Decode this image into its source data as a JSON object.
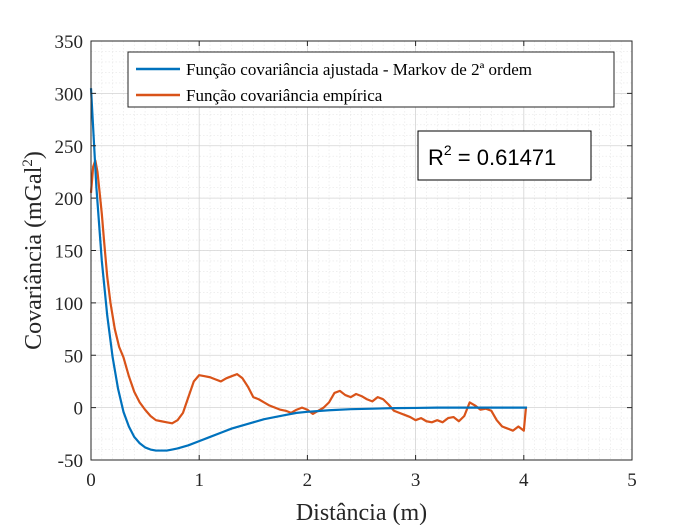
{
  "chart_data": {
    "type": "line",
    "title": "",
    "xlabel": "Distância (m)",
    "ylabel": {
      "prefix": "Covariância (mGal",
      "sup": "2",
      "suffix": ")"
    },
    "xlim": [
      0,
      5
    ],
    "ylim": [
      -50,
      350
    ],
    "xticks": [
      0,
      1,
      2,
      3,
      4,
      5
    ],
    "yticks": [
      -50,
      0,
      50,
      100,
      150,
      200,
      250,
      300,
      350
    ],
    "grid": true,
    "minor_grid": true,
    "legend_position": "top-right",
    "series": [
      {
        "name": "Função covariância ajustada - Markov de 2ª ordem",
        "color": "#0072BD",
        "x": [
          0,
          0.05,
          0.1,
          0.15,
          0.2,
          0.25,
          0.3,
          0.35,
          0.4,
          0.45,
          0.5,
          0.55,
          0.6,
          0.65,
          0.7,
          0.75,
          0.8,
          0.9,
          1.0,
          1.1,
          1.2,
          1.3,
          1.4,
          1.5,
          1.6,
          1.7,
          1.8,
          1.9,
          2.0,
          2.2,
          2.4,
          2.6,
          2.8,
          3.0,
          3.2,
          3.4,
          3.6,
          3.8,
          4.0,
          4.03
        ],
        "y": [
          305,
          210,
          140,
          88,
          48,
          18,
          -4,
          -18,
          -28,
          -34,
          -38,
          -40,
          -41,
          -41,
          -41,
          -40,
          -39,
          -36,
          -32,
          -28,
          -24,
          -20,
          -17,
          -14,
          -11,
          -9,
          -7,
          -5,
          -4,
          -2.5,
          -1.5,
          -1,
          -0.5,
          -0.3,
          0,
          0,
          0,
          0,
          0,
          0
        ]
      },
      {
        "name": "Função covariância empírica",
        "color": "#D95319",
        "x": [
          0,
          0.02,
          0.04,
          0.06,
          0.08,
          0.1,
          0.12,
          0.15,
          0.18,
          0.22,
          0.26,
          0.3,
          0.35,
          0.4,
          0.45,
          0.5,
          0.55,
          0.6,
          0.65,
          0.7,
          0.75,
          0.8,
          0.85,
          0.9,
          0.95,
          1.0,
          1.05,
          1.1,
          1.15,
          1.2,
          1.25,
          1.3,
          1.35,
          1.4,
          1.45,
          1.5,
          1.55,
          1.6,
          1.65,
          1.7,
          1.75,
          1.8,
          1.85,
          1.9,
          1.95,
          2.0,
          2.05,
          2.1,
          2.15,
          2.2,
          2.25,
          2.3,
          2.35,
          2.4,
          2.45,
          2.5,
          2.55,
          2.6,
          2.65,
          2.7,
          2.75,
          2.8,
          2.85,
          2.9,
          2.95,
          3.0,
          3.05,
          3.1,
          3.15,
          3.2,
          3.25,
          3.3,
          3.35,
          3.4,
          3.45,
          3.5,
          3.55,
          3.6,
          3.65,
          3.7,
          3.75,
          3.8,
          3.85,
          3.9,
          3.95,
          4.0,
          4.02
        ],
        "y": [
          205,
          230,
          236,
          225,
          205,
          185,
          160,
          125,
          100,
          75,
          58,
          48,
          30,
          15,
          5,
          -2,
          -8,
          -12,
          -13,
          -14,
          -15,
          -12,
          -5,
          10,
          25,
          31,
          30,
          29,
          27,
          25,
          28,
          30,
          32,
          28,
          20,
          10,
          8,
          5,
          2,
          0,
          -2,
          -3,
          -5,
          -2,
          0,
          -2,
          -6,
          -3,
          0,
          5,
          14,
          16,
          12,
          10,
          13,
          11,
          8,
          6,
          10,
          8,
          3,
          -3,
          -5,
          -7,
          -9,
          -12,
          -10,
          -13,
          -14,
          -12,
          -14,
          -10,
          -9,
          -13,
          -8,
          5,
          2,
          -2,
          -1,
          -3,
          -12,
          -18,
          -20,
          -22,
          -18,
          -22,
          0
        ]
      }
    ],
    "annotation": {
      "base": "R",
      "sup": "2",
      "rest": " = 0.61471"
    }
  }
}
